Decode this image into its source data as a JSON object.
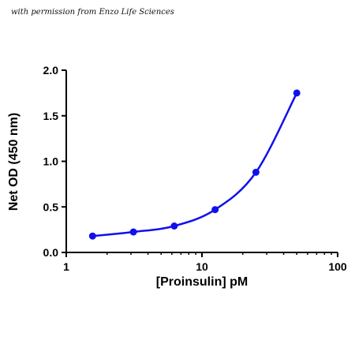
{
  "credit_text": "with permission from Enzo Life Sciences",
  "colors": {
    "series": "#1010ee",
    "axis": "#000000"
  },
  "chart_data": {
    "type": "scatter",
    "xlabel": "[Proinsulin] pM",
    "ylabel": "Net OD (450 nm)",
    "x_scale": "log",
    "xlim": [
      1,
      100
    ],
    "ylim": [
      0.0,
      2.0
    ],
    "x_ticks": [
      {
        "value": 1,
        "label": "1"
      },
      {
        "value": 10,
        "label": "10"
      },
      {
        "value": 100,
        "label": "100"
      }
    ],
    "y_ticks": [
      {
        "value": 0.0,
        "label": "0.0"
      },
      {
        "value": 0.5,
        "label": "0.5"
      },
      {
        "value": 1.0,
        "label": "1.0"
      },
      {
        "value": 1.5,
        "label": "1.5"
      },
      {
        "value": 2.0,
        "label": "2.0"
      }
    ],
    "grid": false,
    "legend": "none",
    "series": [
      {
        "x": [
          1.5625,
          3.125,
          6.25,
          12.5,
          25,
          50
        ],
        "y": [
          0.18,
          0.225,
          0.29,
          0.47,
          0.88,
          1.75
        ],
        "marker": "circle",
        "fit_line": "smooth"
      }
    ]
  }
}
